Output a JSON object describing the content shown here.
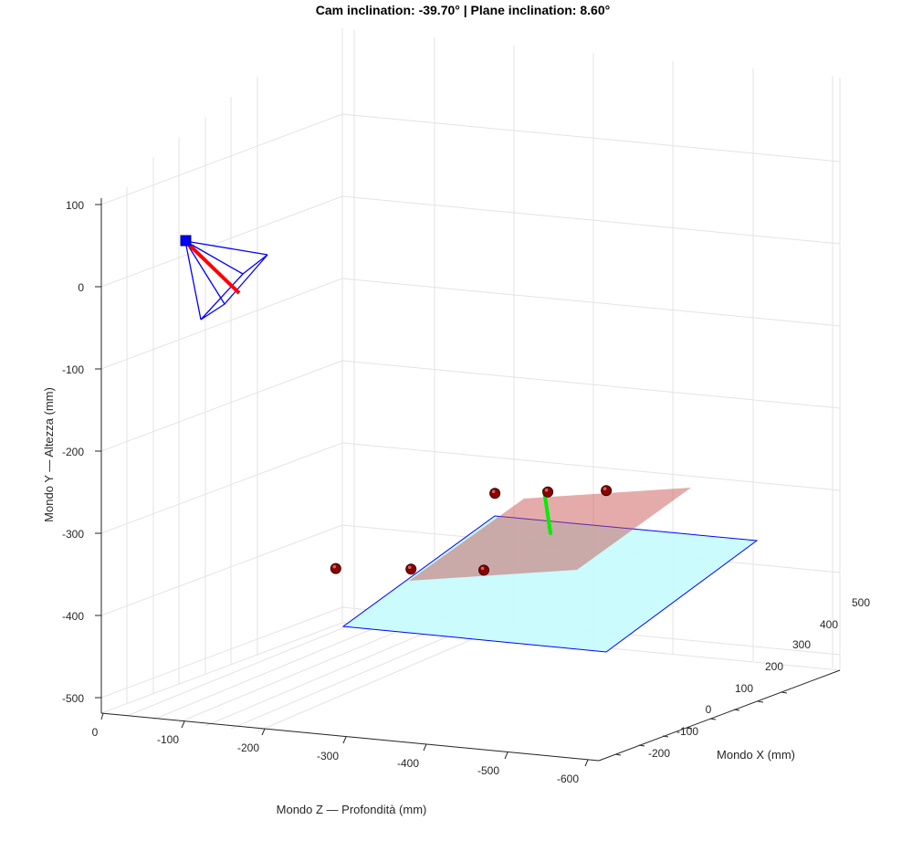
{
  "chart_data": {
    "type": "scatter",
    "title": "Cam inclination: -39.70°  |  Plane inclination: 8.60°",
    "xlabel": "Mondo X (mm)",
    "ylabel": "Mondo Y — Altezza (mm)",
    "zlabel": "Mondo Z — Profondità (mm)",
    "x_ticks": [
      "-200",
      "-100",
      "0",
      "100",
      "200",
      "300",
      "400",
      "500"
    ],
    "y_ticks": [
      "100",
      "0",
      "-100",
      "-200",
      "-300",
      "-400",
      "-500"
    ],
    "z_ticks": [
      "0",
      "-100",
      "-200",
      "-300",
      "-400",
      "-500",
      "-600"
    ],
    "xlim": [
      -250,
      550
    ],
    "ylim": [
      -530,
      110
    ],
    "zlim": [
      0,
      -620
    ],
    "grid": true,
    "colors": {
      "camera_frustum": "#0000ff",
      "camera_axis": "#ff0000",
      "reference_plane_fill": "#c8fbfc",
      "reference_plane_edge": "#0000ff",
      "fitted_plane": "#d57f7f",
      "points": "#8b0000",
      "plane_normal": "#00ee00"
    },
    "series": [
      {
        "values": [
          {
            "x": -137,
            "y": -345,
            "z": -381
          },
          {
            "x": -32,
            "y": -340,
            "z": -360
          },
          {
            "x": 67,
            "y": -335,
            "z": -345
          },
          {
            "x": 156,
            "y": -260,
            "z": -196
          },
          {
            "x": 233,
            "y": -255,
            "z": -175
          },
          {
            "x": 319,
            "y": -250,
            "z": -150
          }
        ]
      }
    ]
  }
}
